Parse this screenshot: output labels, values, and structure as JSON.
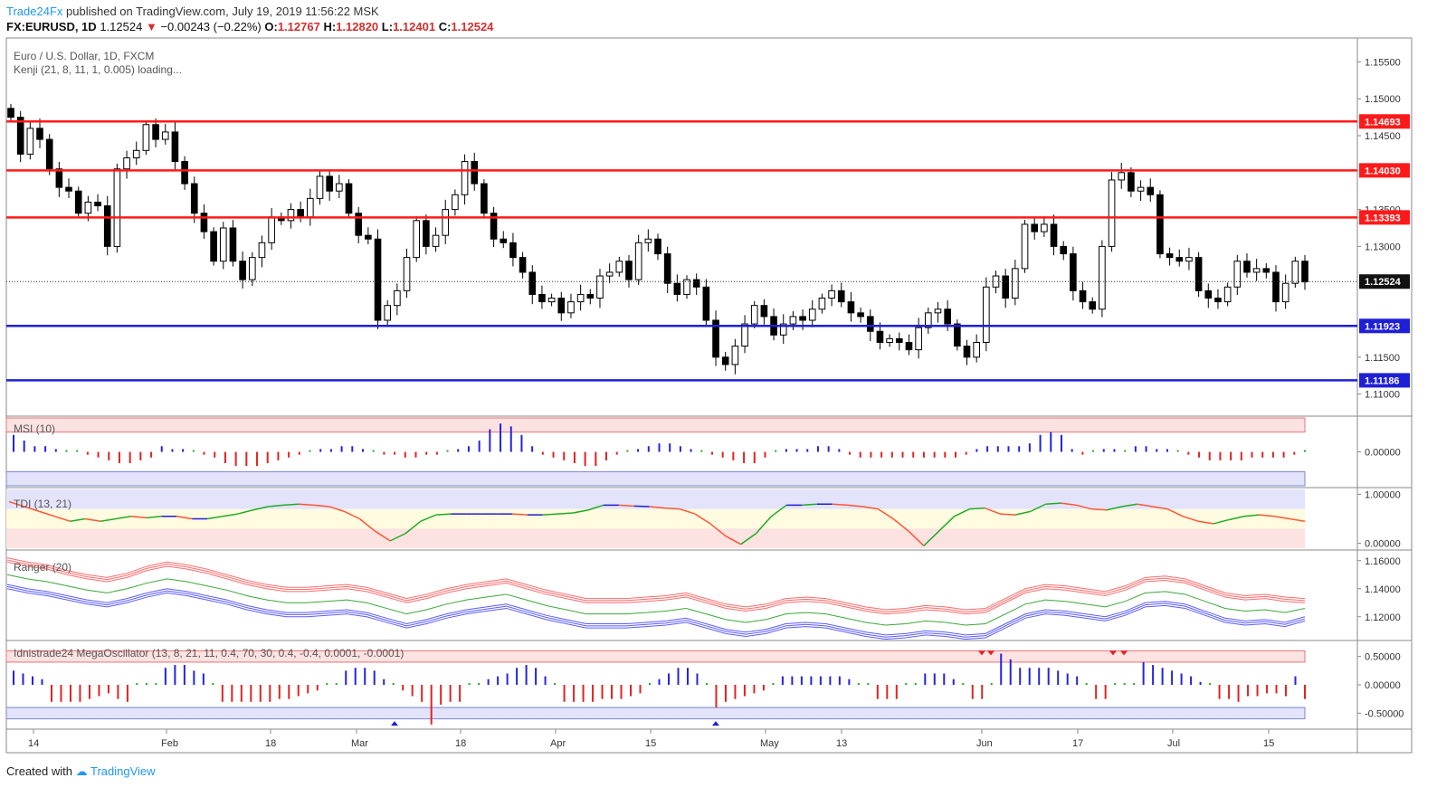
{
  "header": {
    "brand": "Trade24Fx",
    "published": "published on TradingView.com, July 19, 2019 11:56:22 MSK",
    "symbol": "FX:EURUSD, 1D",
    "last": "1.12524",
    "change": "−0.00243 (−0.22%)",
    "o_label": "O:",
    "o_value": "1.12767",
    "h_label": "H:",
    "h_value": "1.12820",
    "l_label": "L:",
    "l_value": "1.12401",
    "c_label": "C:",
    "c_value": "1.12524"
  },
  "footer": {
    "created_with": "Created with",
    "tradingview": "TradingView"
  },
  "colors": {
    "resistance": "#ff1a1a",
    "support": "#1f1fd6",
    "candle_up": "#ffffff",
    "candle_down": "#000000",
    "msi_pos": "#2323e0",
    "msi_neg": "#e02323",
    "msi_neutral": "#22aa22",
    "ranger_upper": "#ff6b6b",
    "ranger_mid": "#3aa83a",
    "ranger_lower": "#5b5bff"
  },
  "chart_data": [
    {
      "type": "candlestick",
      "title": "Euro / U.S. Dollar, 1D, FXCM",
      "subtitle": "Kenji (21, 8, 11, 1, 0.005) loading...",
      "ylim": [
        1.1075,
        1.1575
      ],
      "y_ticks": [
        "1.15500",
        "1.15000",
        "1.14500",
        "1.13500",
        "1.13000",
        "1.11500",
        "1.11000"
      ],
      "x_ticks": [
        "14",
        "Feb",
        "18",
        "Mar",
        "18",
        "Apr",
        "15",
        "May",
        "13",
        "Jun",
        "17",
        "Jul",
        "15"
      ],
      "last_price": "1.12524",
      "levels": [
        {
          "kind": "resistance",
          "value": 1.14693,
          "label": "1.14693"
        },
        {
          "kind": "resistance",
          "value": 1.1403,
          "label": "1.14030"
        },
        {
          "kind": "resistance",
          "value": 1.13393,
          "label": "1.13393"
        },
        {
          "kind": "support",
          "value": 1.11923,
          "label": "1.11923"
        },
        {
          "kind": "support",
          "value": 1.11186,
          "label": "1.11186"
        }
      ],
      "close": [
        1.1475,
        1.1425,
        1.146,
        1.1445,
        1.1405,
        1.138,
        1.1375,
        1.1345,
        1.136,
        1.1355,
        1.13,
        1.1405,
        1.142,
        1.143,
        1.1465,
        1.1445,
        1.1455,
        1.1415,
        1.1385,
        1.1345,
        1.132,
        1.128,
        1.1325,
        1.128,
        1.1255,
        1.1285,
        1.1305,
        1.134,
        1.1335,
        1.135,
        1.134,
        1.1365,
        1.1395,
        1.1375,
        1.1385,
        1.1345,
        1.1315,
        1.131,
        1.12,
        1.122,
        1.124,
        1.1285,
        1.1335,
        1.13,
        1.1315,
        1.135,
        1.137,
        1.1415,
        1.1385,
        1.1345,
        1.131,
        1.1305,
        1.1285,
        1.1265,
        1.1235,
        1.1225,
        1.123,
        1.121,
        1.1225,
        1.1235,
        1.123,
        1.126,
        1.1265,
        1.128,
        1.1255,
        1.1305,
        1.131,
        1.129,
        1.125,
        1.1235,
        1.1255,
        1.1245,
        1.12,
        1.115,
        1.114,
        1.1165,
        1.1195,
        1.122,
        1.1205,
        1.118,
        1.1195,
        1.1205,
        1.12,
        1.1215,
        1.123,
        1.124,
        1.1225,
        1.121,
        1.1205,
        1.1185,
        1.117,
        1.1175,
        1.117,
        1.116,
        1.119,
        1.121,
        1.1215,
        1.1195,
        1.1165,
        1.115,
        1.117,
        1.1245,
        1.126,
        1.123,
        1.127,
        1.133,
        1.132,
        1.133,
        1.13,
        1.129,
        1.124,
        1.1225,
        1.1215,
        1.13,
        1.139,
        1.14,
        1.1375,
        1.138,
        1.137,
        1.129,
        1.1285,
        1.128,
        1.1285,
        1.124,
        1.123,
        1.1225,
        1.1245,
        1.128,
        1.1265,
        1.127,
        1.1265,
        1.1225,
        1.125,
        1.128,
        1.1252
      ],
      "x_range": [
        "2019-01-14",
        "2019-07-19"
      ]
    },
    {
      "type": "bar",
      "title": "MSI (10)",
      "ylim": [
        -0.6,
        0.6
      ],
      "y_ticks": [
        "0.00000"
      ],
      "values": [
        0.3,
        0.2,
        0.1,
        0.1,
        0.05,
        0.0,
        0.0,
        -0.05,
        -0.1,
        -0.15,
        -0.2,
        -0.2,
        -0.15,
        -0.1,
        0.1,
        0.05,
        0.05,
        0.0,
        -0.05,
        -0.1,
        -0.2,
        -0.25,
        -0.25,
        -0.25,
        -0.2,
        -0.15,
        -0.1,
        -0.05,
        0.0,
        0.05,
        0.05,
        0.1,
        0.1,
        0.05,
        0.0,
        -0.05,
        -0.05,
        -0.1,
        -0.1,
        -0.05,
        -0.05,
        0.0,
        0.05,
        0.1,
        0.2,
        0.4,
        0.5,
        0.45,
        0.3,
        0.1,
        -0.05,
        -0.1,
        -0.15,
        -0.2,
        -0.25,
        -0.25,
        -0.15,
        -0.05,
        0.0,
        0.05,
        0.1,
        0.15,
        0.15,
        0.1,
        0.05,
        0.0,
        -0.05,
        -0.1,
        -0.15,
        -0.2,
        -0.2,
        -0.1,
        0.0,
        0.05,
        0.05,
        0.05,
        0.1,
        0.1,
        0.05,
        -0.05,
        -0.1,
        -0.1,
        -0.1,
        -0.1,
        -0.1,
        -0.1,
        -0.1,
        -0.1,
        -0.1,
        -0.1,
        -0.05,
        0.05,
        0.1,
        0.1,
        0.1,
        0.1,
        0.15,
        0.3,
        0.35,
        0.3,
        0.05,
        -0.05,
        0.0,
        0.05,
        0.05,
        0.0,
        0.1,
        0.1,
        0.05,
        0.05,
        0.0,
        -0.05,
        -0.1,
        -0.15,
        -0.15,
        -0.15,
        -0.15,
        -0.1,
        -0.1,
        -0.1,
        -0.1,
        -0.05,
        0.0
      ]
    },
    {
      "type": "line",
      "title": "TDI (13, 21)",
      "ylim": [
        -0.1,
        1.1
      ],
      "y_ticks": [
        "1.00000",
        "0.00000"
      ],
      "values": [
        0.85,
        0.75,
        0.65,
        0.55,
        0.45,
        0.5,
        0.45,
        0.5,
        0.55,
        0.52,
        0.55,
        0.55,
        0.5,
        0.5,
        0.55,
        0.6,
        0.68,
        0.75,
        0.78,
        0.8,
        0.78,
        0.75,
        0.65,
        0.5,
        0.25,
        0.05,
        0.2,
        0.45,
        0.58,
        0.6,
        0.6,
        0.6,
        0.6,
        0.6,
        0.58,
        0.58,
        0.6,
        0.62,
        0.68,
        0.78,
        0.78,
        0.76,
        0.75,
        0.72,
        0.7,
        0.6,
        0.4,
        0.15,
        -0.02,
        0.2,
        0.55,
        0.78,
        0.78,
        0.8,
        0.8,
        0.78,
        0.75,
        0.7,
        0.5,
        0.25,
        -0.05,
        0.25,
        0.55,
        0.7,
        0.72,
        0.6,
        0.58,
        0.65,
        0.8,
        0.82,
        0.78,
        0.7,
        0.68,
        0.75,
        0.8,
        0.75,
        0.7,
        0.55,
        0.45,
        0.4,
        0.48,
        0.55,
        0.58,
        0.55,
        0.5,
        0.45
      ]
    },
    {
      "type": "line",
      "title": "Ranger (20)",
      "ylim": [
        1.105,
        1.165
      ],
      "y_ticks": [
        "1.16000",
        "1.14000",
        "1.12000"
      ],
      "upper": [
        1.159,
        1.156,
        1.154,
        1.15,
        1.147,
        1.145,
        1.148,
        1.153,
        1.156,
        1.154,
        1.151,
        1.147,
        1.143,
        1.14,
        1.138,
        1.138,
        1.139,
        1.14,
        1.138,
        1.134,
        1.13,
        1.133,
        1.137,
        1.14,
        1.142,
        1.144,
        1.14,
        1.136,
        1.133,
        1.13,
        1.13,
        1.13,
        1.131,
        1.132,
        1.134,
        1.13,
        1.126,
        1.124,
        1.126,
        1.13,
        1.131,
        1.13,
        1.127,
        1.124,
        1.122,
        1.123,
        1.125,
        1.124,
        1.122,
        1.123,
        1.13,
        1.137,
        1.14,
        1.139,
        1.137,
        1.135,
        1.139,
        1.145,
        1.146,
        1.144,
        1.139,
        1.134,
        1.132,
        1.133,
        1.131,
        1.13
      ],
      "mid": [
        1.15,
        1.147,
        1.145,
        1.142,
        1.139,
        1.137,
        1.14,
        1.144,
        1.147,
        1.145,
        1.142,
        1.139,
        1.135,
        1.132,
        1.13,
        1.13,
        1.131,
        1.132,
        1.13,
        1.126,
        1.122,
        1.125,
        1.129,
        1.132,
        1.134,
        1.136,
        1.132,
        1.128,
        1.125,
        1.122,
        1.122,
        1.122,
        1.123,
        1.124,
        1.126,
        1.122,
        1.118,
        1.116,
        1.118,
        1.122,
        1.123,
        1.122,
        1.119,
        1.116,
        1.114,
        1.115,
        1.117,
        1.116,
        1.114,
        1.115,
        1.122,
        1.129,
        1.132,
        1.131,
        1.129,
        1.127,
        1.131,
        1.137,
        1.138,
        1.136,
        1.131,
        1.126,
        1.124,
        1.125,
        1.123,
        1.126
      ],
      "lower": [
        1.143,
        1.14,
        1.138,
        1.135,
        1.132,
        1.13,
        1.133,
        1.137,
        1.14,
        1.138,
        1.135,
        1.132,
        1.128,
        1.125,
        1.123,
        1.123,
        1.124,
        1.125,
        1.123,
        1.119,
        1.115,
        1.118,
        1.122,
        1.125,
        1.127,
        1.129,
        1.125,
        1.121,
        1.118,
        1.115,
        1.115,
        1.115,
        1.116,
        1.117,
        1.119,
        1.115,
        1.111,
        1.109,
        1.111,
        1.115,
        1.116,
        1.115,
        1.112,
        1.109,
        1.107,
        1.108,
        1.11,
        1.109,
        1.107,
        1.108,
        1.115,
        1.122,
        1.125,
        1.124,
        1.122,
        1.12,
        1.124,
        1.13,
        1.131,
        1.129,
        1.124,
        1.119,
        1.117,
        1.118,
        1.116,
        1.12
      ]
    },
    {
      "type": "bar",
      "title": "Idnistrade24 MegaOscillator (13, 8, 21, 11, 0.4, 70, 30, 0.4, -0.4, 0.0001, -0.0001)",
      "ylim": [
        -0.75,
        0.75
      ],
      "y_ticks": [
        "0.50000",
        "0.00000",
        "-0.50000"
      ],
      "values": [
        0.25,
        0.2,
        0.15,
        0.1,
        -0.3,
        -0.3,
        -0.3,
        -0.3,
        -0.25,
        -0.2,
        -0.15,
        -0.25,
        -0.3,
        0.0,
        0.0,
        0.0,
        0.3,
        0.35,
        0.35,
        0.25,
        0.2,
        0.0,
        -0.3,
        -0.3,
        -0.3,
        -0.3,
        -0.3,
        -0.3,
        -0.25,
        -0.25,
        -0.2,
        -0.15,
        -0.1,
        0.0,
        0.0,
        0.25,
        0.3,
        0.3,
        0.25,
        0.1,
        0.0,
        -0.1,
        -0.2,
        -0.3,
        -0.7,
        -0.35,
        -0.3,
        -0.3,
        0.0,
        0.0,
        0.1,
        0.15,
        0.2,
        0.3,
        0.35,
        0.3,
        0.15,
        0.0,
        -0.3,
        -0.3,
        -0.3,
        -0.3,
        -0.25,
        -0.25,
        -0.25,
        -0.2,
        -0.15,
        0.0,
        0.1,
        0.2,
        0.3,
        0.3,
        0.2,
        0.0,
        -0.4,
        -0.3,
        -0.25,
        -0.2,
        -0.15,
        -0.1,
        0.0,
        0.15,
        0.15,
        0.15,
        0.15,
        0.15,
        0.15,
        0.15,
        0.1,
        0.0,
        0.0,
        -0.25,
        -0.25,
        -0.25,
        0.0,
        0.0,
        0.2,
        0.2,
        0.2,
        0.1,
        0.0,
        -0.25,
        -0.25,
        0.0,
        0.55,
        0.45,
        0.3,
        0.3,
        0.3,
        0.3,
        0.25,
        0.2,
        0.15,
        0.0,
        -0.25,
        -0.25,
        0.0,
        0.0,
        0.0,
        0.4,
        0.35,
        0.3,
        0.25,
        0.2,
        0.15,
        0.05,
        0.0,
        -0.25,
        -0.25,
        -0.3,
        -0.2,
        -0.2,
        -0.15,
        -0.15,
        -0.2,
        0.15,
        -0.25
      ]
    }
  ]
}
